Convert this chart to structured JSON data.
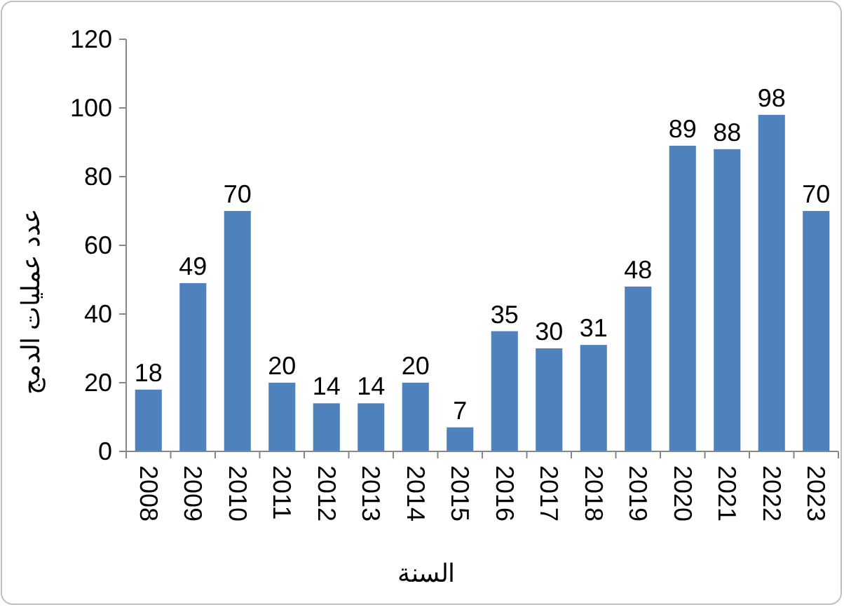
{
  "chart_data": {
    "type": "bar",
    "xlabel": "السنة",
    "ylabel": "عدد عمليات الدمج",
    "categories": [
      "2008",
      "2009",
      "2010",
      "2011",
      "2012",
      "2013",
      "2014",
      "2015",
      "2016",
      "2017",
      "2018",
      "2019",
      "2020",
      "2021",
      "2022",
      "2023"
    ],
    "values": [
      18,
      49,
      70,
      20,
      14,
      14,
      20,
      7,
      35,
      30,
      31,
      48,
      89,
      88,
      98,
      70
    ],
    "color": "#4f81bd",
    "ylim": [
      0,
      120
    ],
    "yticks": [
      0,
      20,
      40,
      60,
      80,
      100,
      120
    ],
    "grid": false,
    "data_labels": true
  }
}
